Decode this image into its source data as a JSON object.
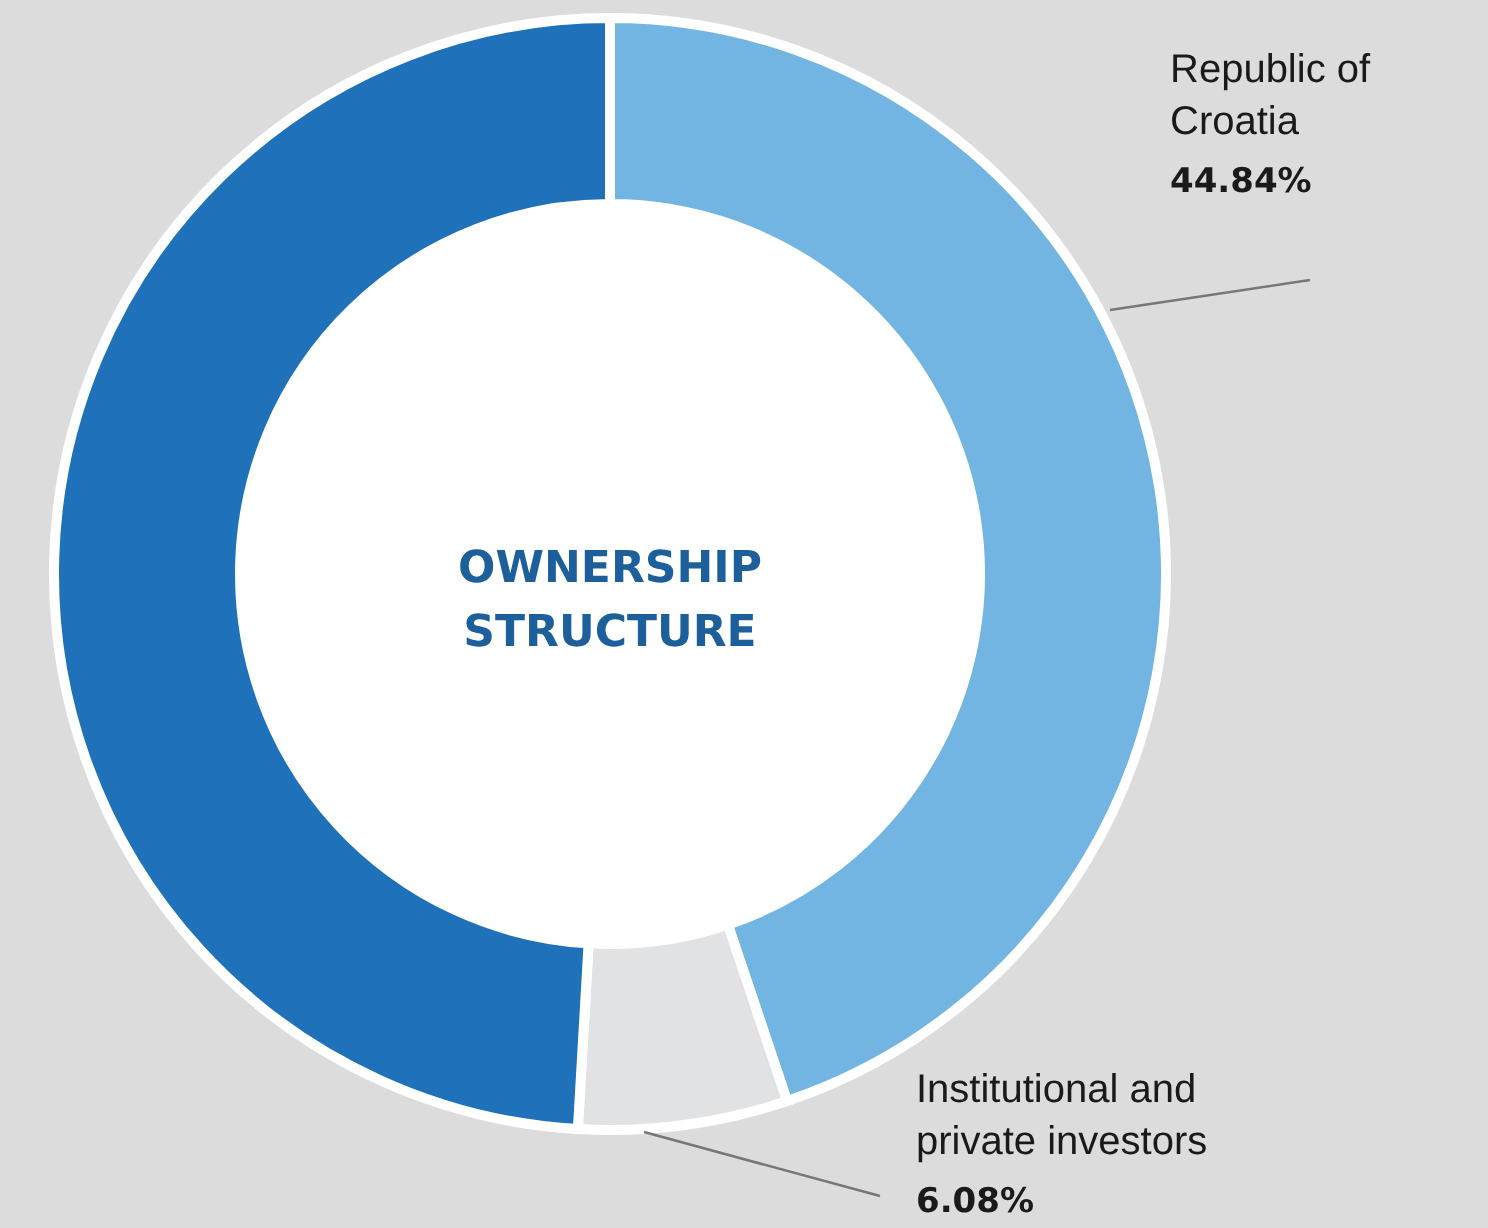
{
  "chart_data": {
    "type": "donut",
    "title": "OWNERSHIP STRUCTURE",
    "categories": [
      "Republic of Croatia",
      "Institutional and private investors",
      null
    ],
    "values": [
      44.84,
      6.08,
      49.08
    ],
    "colors": [
      "#72b4e2",
      "#e1e2e4",
      "#1f72ba"
    ],
    "value_labels": [
      "44.84%",
      "6.08%",
      null
    ]
  }
}
